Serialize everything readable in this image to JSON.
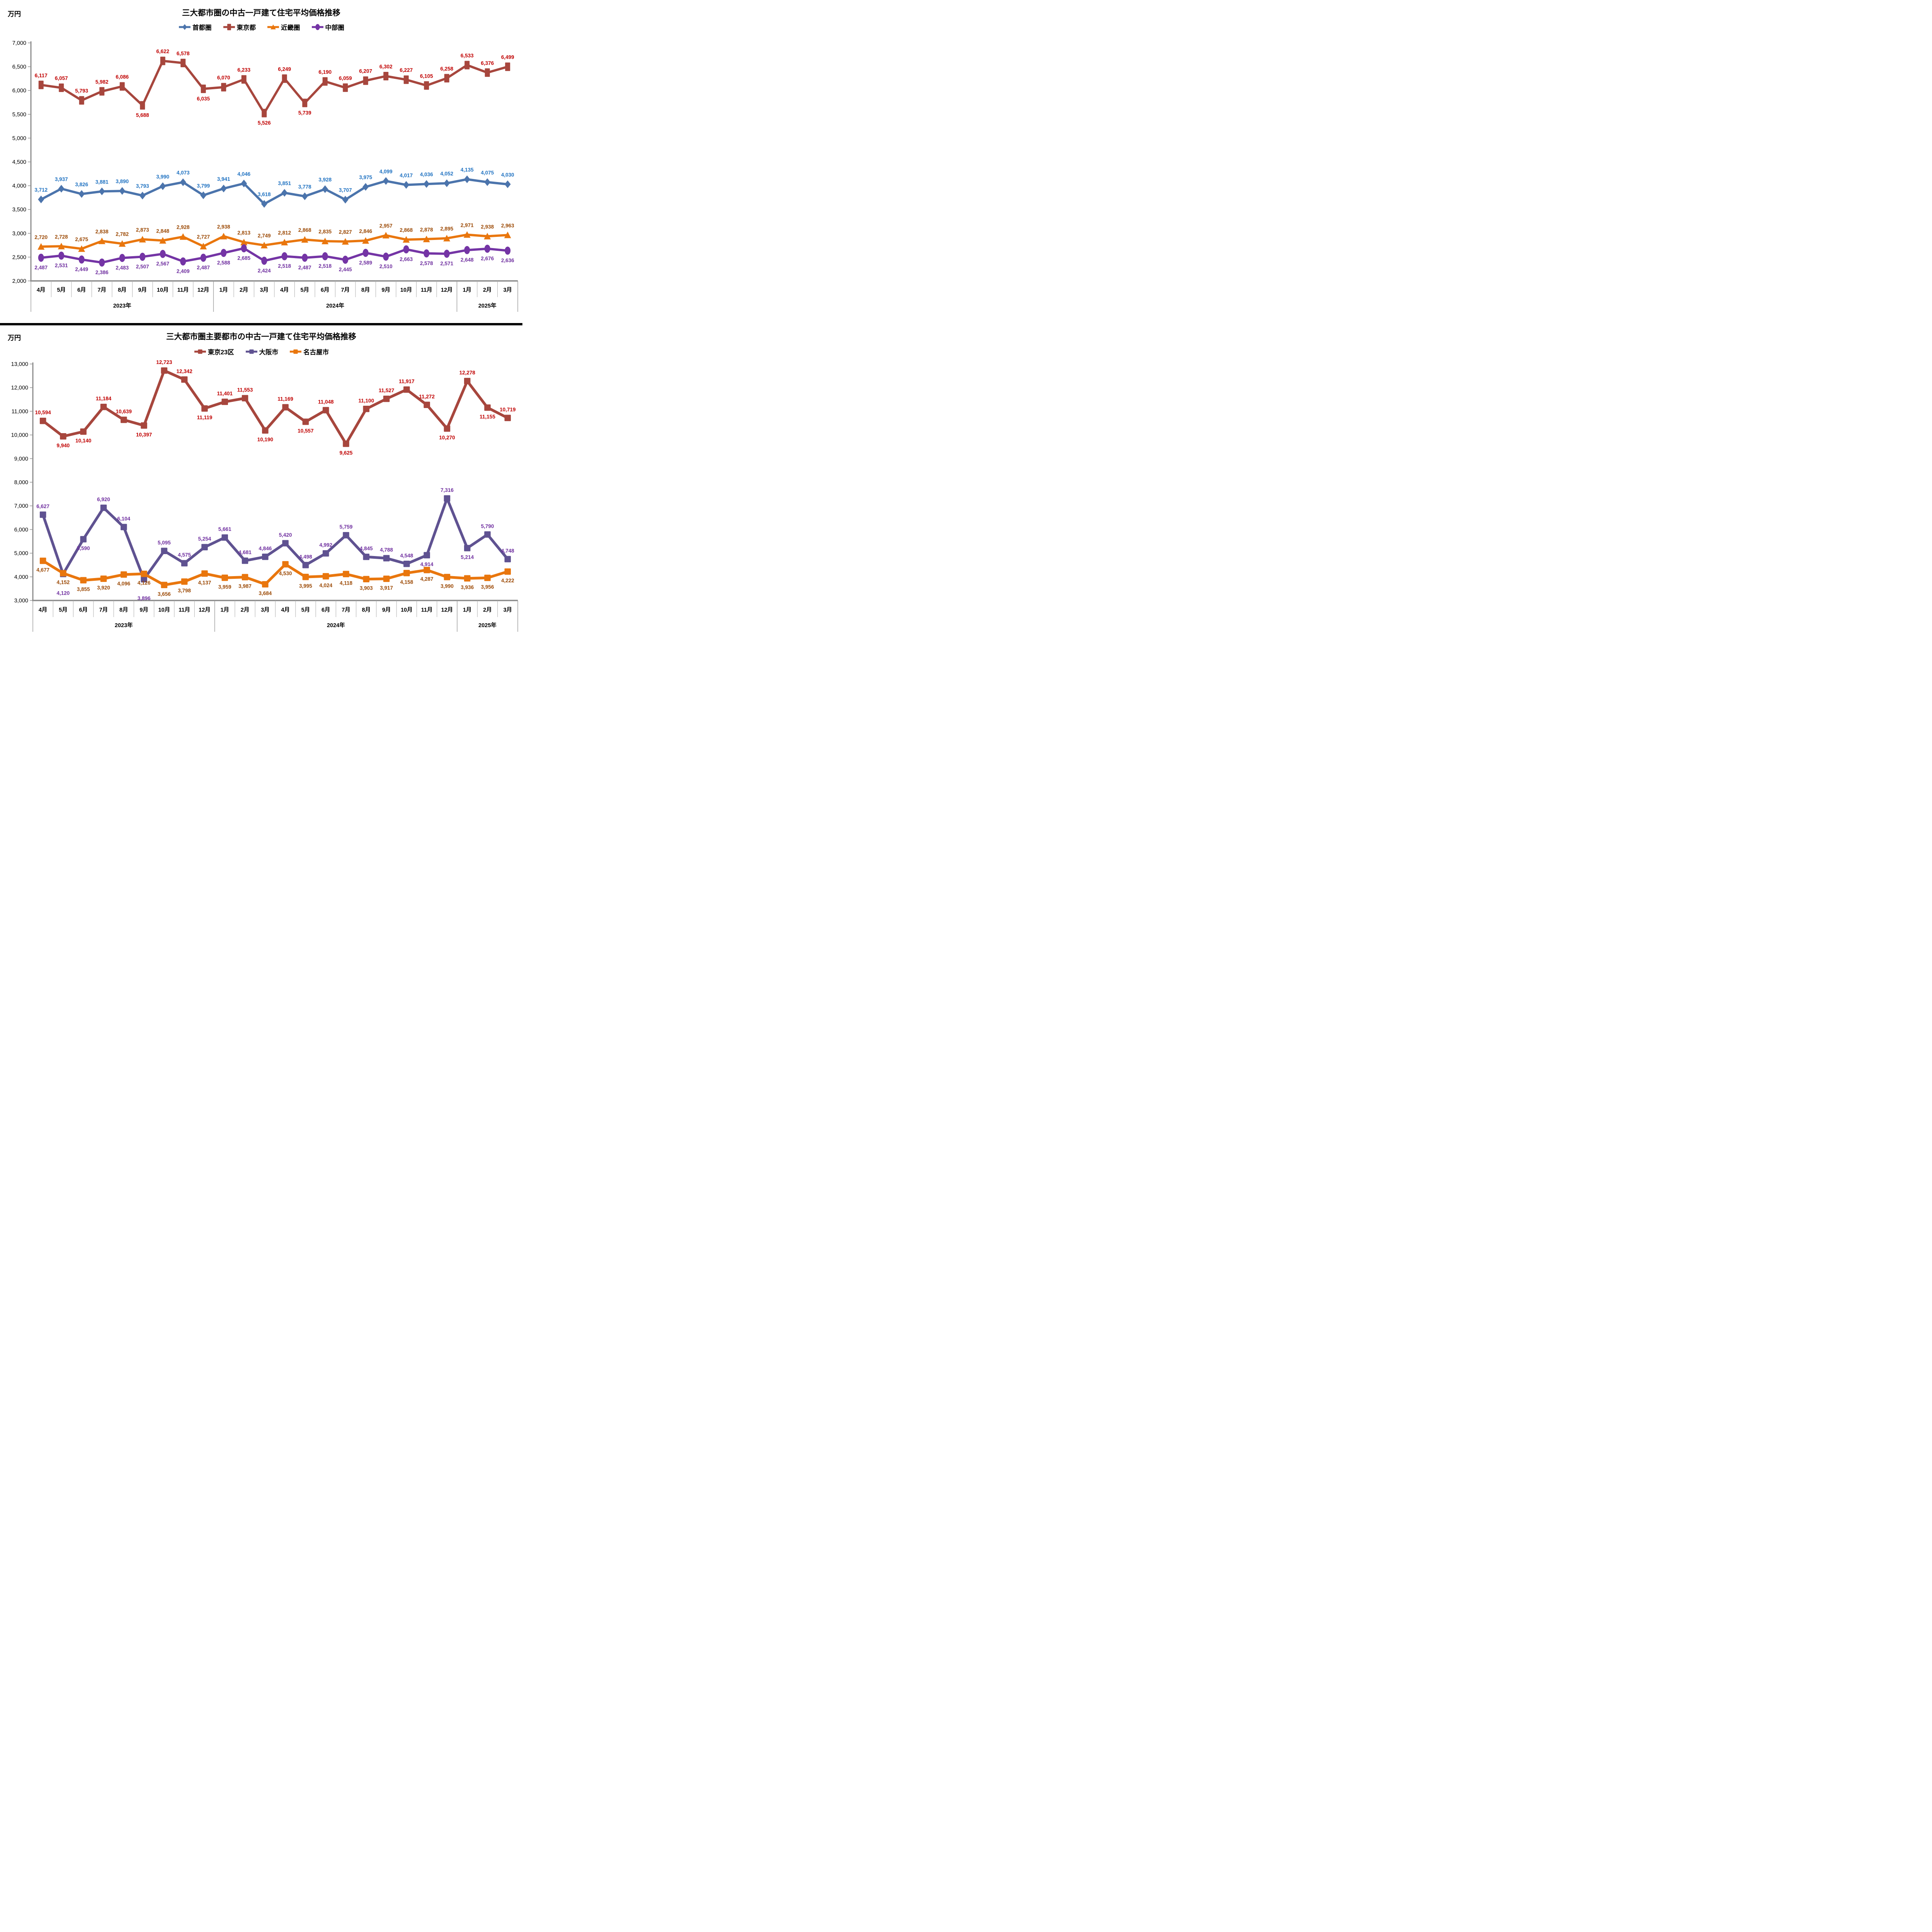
{
  "chart_data": [
    {
      "type": "line",
      "title": "三大都市圏の中古一戸建て住宅平均価格推移",
      "unit_label": "万円",
      "categories": [
        "4月",
        "5月",
        "6月",
        "7月",
        "8月",
        "9月",
        "10月",
        "11月",
        "12月",
        "1月",
        "2月",
        "3月",
        "4月",
        "5月",
        "6月",
        "7月",
        "8月",
        "9月",
        "10月",
        "11月",
        "12月",
        "1月",
        "2月",
        "3月"
      ],
      "year_groups": [
        {
          "label": "2023年",
          "start": 0,
          "end": 9
        },
        {
          "label": "2024年",
          "start": 9,
          "end": 21
        },
        {
          "label": "2025年",
          "start": 21,
          "end": 24
        }
      ],
      "y_axis": {
        "min": 2000,
        "max": 7000,
        "step": 500,
        "tick_labels": [
          "7,000",
          "6,500",
          "6,000",
          "5,500",
          "5,000",
          "4,500",
          "4,000",
          "3,500",
          "3,000",
          "2,500",
          "2,000"
        ]
      },
      "grid": false,
      "legend_position": "top",
      "series": [
        {
          "name": "首都圏",
          "marker": "diamond",
          "color": "#4B74AC",
          "label_color": "#2173C2",
          "values": [
            3712,
            3937,
            3826,
            3881,
            3890,
            3793,
            3990,
            4073,
            3799,
            3941,
            4046,
            3618,
            3851,
            3778,
            3928,
            3707,
            3975,
            4099,
            4017,
            4036,
            4052,
            4135,
            4075,
            4030
          ],
          "label_side": [
            "a",
            "a",
            "a",
            "a",
            "a",
            "a",
            "a",
            "a",
            "a",
            "a",
            "a",
            "a",
            "a",
            "a",
            "a",
            "a",
            "a",
            "a",
            "a",
            "a",
            "a",
            "a",
            "a",
            "a"
          ]
        },
        {
          "name": "東京都",
          "marker": "rect-v",
          "color": "#A7463D",
          "label_color": "#C00000",
          "values": [
            6117,
            6057,
            5793,
            5982,
            6086,
            5688,
            6622,
            6578,
            6035,
            6070,
            6233,
            5526,
            6249,
            5739,
            6190,
            6059,
            6207,
            6302,
            6227,
            6105,
            6258,
            6533,
            6376,
            6499
          ],
          "label_side": [
            "a",
            "a",
            "a",
            "a",
            "a",
            "b",
            "a",
            "a",
            "b",
            "a",
            "a",
            "b",
            "a",
            "b",
            "a",
            "a",
            "a",
            "a",
            "a",
            "a",
            "a",
            "a",
            "a",
            "a"
          ]
        },
        {
          "name": "近畿圏",
          "marker": "triangle",
          "color": "#E9760D",
          "label_color": "#9C4A06",
          "values": [
            2720,
            2728,
            2675,
            2838,
            2782,
            2873,
            2848,
            2928,
            2727,
            2938,
            2813,
            2749,
            2812,
            2868,
            2835,
            2827,
            2846,
            2957,
            2868,
            2878,
            2895,
            2971,
            2938,
            2963
          ],
          "label_side": [
            "a",
            "a",
            "a",
            "a",
            "a",
            "a",
            "a",
            "a",
            "a",
            "a",
            "a",
            "a",
            "a",
            "a",
            "a",
            "a",
            "a",
            "a",
            "a",
            "a",
            "a",
            "a",
            "a",
            "a"
          ]
        },
        {
          "name": "中部圏",
          "marker": "circle",
          "color": "#7434A5",
          "label_color": "#7030A0",
          "values": [
            2487,
            2531,
            2449,
            2386,
            2483,
            2507,
            2567,
            2409,
            2487,
            2588,
            2685,
            2424,
            2518,
            2487,
            2518,
            2445,
            2589,
            2510,
            2663,
            2578,
            2571,
            2648,
            2676,
            2636
          ],
          "label_side": [
            "b",
            "b",
            "b",
            "b",
            "b",
            "b",
            "b",
            "b",
            "b",
            "b",
            "b",
            "b",
            "b",
            "b",
            "b",
            "b",
            "b",
            "b",
            "b",
            "b",
            "b",
            "b",
            "b",
            "b"
          ]
        }
      ]
    },
    {
      "type": "line",
      "title": "三大都市圏主要都市の中古一戸建て住宅平均価格推移",
      "unit_label": "万円",
      "categories": [
        "4月",
        "5月",
        "6月",
        "7月",
        "8月",
        "9月",
        "10月",
        "11月",
        "12月",
        "1月",
        "2月",
        "3月",
        "4月",
        "5月",
        "6月",
        "7月",
        "8月",
        "9月",
        "10月",
        "11月",
        "12月",
        "1月",
        "2月",
        "3月"
      ],
      "year_groups": [
        {
          "label": "2023年",
          "start": 0,
          "end": 9
        },
        {
          "label": "2024年",
          "start": 9,
          "end": 21
        },
        {
          "label": "2025年",
          "start": 21,
          "end": 24
        }
      ],
      "y_axis": {
        "min": 3000,
        "max": 13000,
        "step": 1000,
        "tick_labels": [
          "13,000",
          "12,000",
          "11,000",
          "10,000",
          "9,000",
          "8,000",
          "7,000",
          "6,000",
          "5,000",
          "4,000",
          "3,000"
        ]
      },
      "grid": false,
      "legend_position": "top",
      "series": [
        {
          "name": "東京23区",
          "marker": "square",
          "color": "#A7463D",
          "label_color": "#C00000",
          "values": [
            10594,
            9940,
            10140,
            11184,
            10639,
            10397,
            12723,
            12342,
            11119,
            11401,
            11553,
            10190,
            11169,
            10557,
            11048,
            9625,
            11100,
            11527,
            11917,
            11272,
            10270,
            12278,
            11155,
            10719
          ],
          "label_side": [
            "a",
            "b",
            "b",
            "a",
            "a",
            "b",
            "a",
            "a",
            "b",
            "a",
            "a",
            "b",
            "a",
            "b",
            "a",
            "b",
            "a",
            "a",
            "a",
            "a",
            "b",
            "a",
            "b",
            "a"
          ]
        },
        {
          "name": "大阪市",
          "marker": "square",
          "color": "#5F5291",
          "label_color": "#7030A0",
          "values": [
            6627,
            4120,
            5590,
            6920,
            6104,
            3896,
            5095,
            4575,
            5254,
            5661,
            4681,
            4846,
            5420,
            4498,
            4992,
            5759,
            4845,
            4788,
            4548,
            4914,
            7316,
            5214,
            5790,
            4748
          ],
          "label_side": [
            "a",
            "b2",
            "b",
            "a",
            "a",
            "b2",
            "a",
            "a",
            "a",
            "a",
            "a",
            "a",
            "a",
            "a",
            "a",
            "a",
            "a",
            "a",
            "a",
            "b",
            "a",
            "b",
            "a",
            "a"
          ]
        },
        {
          "name": "名古屋市",
          "marker": "square",
          "color": "#E9760D",
          "label_color": "#9C4A06",
          "values": [
            4677,
            4152,
            3855,
            3920,
            4096,
            4126,
            3656,
            3798,
            4137,
            3959,
            3987,
            3684,
            4530,
            3995,
            4024,
            4118,
            3903,
            3917,
            4158,
            4287,
            3990,
            3936,
            3956,
            4222
          ],
          "label_side": [
            "b",
            "b",
            "b",
            "b",
            "b",
            "b",
            "b",
            "b",
            "b",
            "b",
            "b",
            "b",
            "b",
            "b",
            "b",
            "b",
            "b",
            "b",
            "b",
            "b",
            "b",
            "b",
            "b",
            "b"
          ]
        }
      ]
    }
  ]
}
